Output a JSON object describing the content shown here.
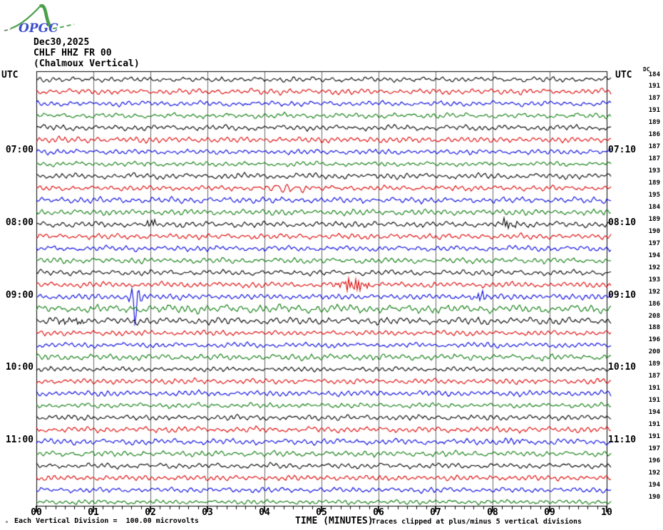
{
  "logo": {
    "text": "OPGC",
    "text_color": "#3d4ec9",
    "curve_color": "#4aa04a"
  },
  "header": {
    "date": "Dec30,2025",
    "station": "CHLF HHZ FR 00",
    "description": "(Chalmoux Vertical)"
  },
  "axis": {
    "utc_left": "UTC",
    "utc_right": "UTC",
    "dc_header": "DC",
    "x_ticks": [
      "00",
      "01",
      "02",
      "03",
      "04",
      "05",
      "06",
      "07",
      "08",
      "09",
      "10"
    ],
    "minor_ticks_per_major": 6,
    "x_label": "TIME (MINUTES)"
  },
  "hour_labels": [
    {
      "row": 7,
      "left": "07:00",
      "right": "07:10"
    },
    {
      "row": 13,
      "left": "08:00",
      "right": "08:10"
    },
    {
      "row": 19,
      "left": "09:00",
      "right": "09:10"
    },
    {
      "row": 25,
      "left": "10:00",
      "right": "10:10"
    },
    {
      "row": 31,
      "left": "11:00",
      "right": "11:10"
    }
  ],
  "footer": {
    "micro_glyph": "ₘ",
    "scale_note": "Each Vertical Division =  100.00 microvolts",
    "clip_note": "Traces clipped at plus/minus 5 vertical divisions"
  },
  "chart_data": {
    "type": "line",
    "title": "CHLF HHZ FR 00 (Chalmoux Vertical) Dec30,2025 helicorder",
    "xlabel": "TIME (MINUTES)",
    "x_range": [
      0,
      10
    ],
    "grid": true,
    "grid_color": "#666666",
    "row_duration_minutes": 10,
    "vertical_division_microvolts": 100.0,
    "clip_divisions": 5,
    "colors": {
      "black": "#000000",
      "red": "#dd0000",
      "blue": "#0000dd",
      "green": "#0a7a0a"
    },
    "rows": [
      {
        "start": "06:00",
        "end": "06:10",
        "color": "black",
        "dc": 184
      },
      {
        "start": "06:10",
        "end": "06:20",
        "color": "red",
        "dc": 191
      },
      {
        "start": "06:20",
        "end": "06:30",
        "color": "blue",
        "dc": 187
      },
      {
        "start": "06:30",
        "end": "06:40",
        "color": "green",
        "dc": 191
      },
      {
        "start": "06:40",
        "end": "06:50",
        "color": "black",
        "dc": 189
      },
      {
        "start": "06:50",
        "end": "07:00",
        "color": "red",
        "dc": 186
      },
      {
        "start": "07:00",
        "end": "07:10",
        "color": "blue",
        "dc": 187
      },
      {
        "start": "07:10",
        "end": "07:20",
        "color": "green",
        "dc": 187
      },
      {
        "start": "07:20",
        "end": "07:30",
        "color": "black",
        "dc": 193
      },
      {
        "start": "07:30",
        "end": "07:40",
        "color": "red",
        "dc": 189,
        "events": [
          {
            "t": 4.35,
            "amp": 4.5,
            "sigma": 0.28,
            "wl": 14
          }
        ]
      },
      {
        "start": "07:40",
        "end": "07:50",
        "color": "blue",
        "dc": 195,
        "amp": 1.15
      },
      {
        "start": "07:50",
        "end": "08:00",
        "color": "green",
        "dc": 184
      },
      {
        "start": "08:00",
        "end": "08:10",
        "color": "black",
        "dc": 189,
        "events": [
          {
            "t": 2.02,
            "amp": 5.5,
            "sigma": 0.06,
            "wl": 3.2
          },
          {
            "t": 8.28,
            "amp": 6.5,
            "sigma": 0.09,
            "wl": 3.6
          }
        ]
      },
      {
        "start": "08:10",
        "end": "08:20",
        "color": "red",
        "dc": 190
      },
      {
        "start": "08:20",
        "end": "08:30",
        "color": "blue",
        "dc": 197
      },
      {
        "start": "08:30",
        "end": "08:40",
        "color": "green",
        "dc": 194
      },
      {
        "start": "08:40",
        "end": "08:50",
        "color": "black",
        "dc": 192
      },
      {
        "start": "08:50",
        "end": "09:00",
        "color": "red",
        "dc": 193,
        "events": [
          {
            "t": 5.55,
            "amp": 9,
            "sigma": 0.16,
            "wl": 3.5
          }
        ]
      },
      {
        "start": "09:00",
        "end": "09:10",
        "color": "blue",
        "dc": 192,
        "events": [
          {
            "t": 1.73,
            "amp": 15,
            "sigma": 0.08,
            "wl": 2.6,
            "spike": 26
          },
          {
            "t": 7.78,
            "amp": 6.5,
            "sigma": 0.07,
            "wl": 3
          }
        ]
      },
      {
        "start": "09:10",
        "end": "09:20",
        "color": "green",
        "dc": 186,
        "amp": 1.65
      },
      {
        "start": "09:20",
        "end": "09:30",
        "color": "black",
        "dc": 208,
        "amp": 1.15,
        "events": [
          {
            "t": 0.6,
            "amp": 5.5,
            "sigma": 0.13,
            "wl": 3.8
          }
        ]
      },
      {
        "start": "09:30",
        "end": "09:40",
        "color": "red",
        "dc": 188
      },
      {
        "start": "09:40",
        "end": "09:50",
        "color": "blue",
        "dc": 196
      },
      {
        "start": "09:50",
        "end": "10:00",
        "color": "green",
        "dc": 200,
        "amp": 1.3
      },
      {
        "start": "10:00",
        "end": "10:10",
        "color": "black",
        "dc": 189
      },
      {
        "start": "10:10",
        "end": "10:20",
        "color": "red",
        "dc": 187
      },
      {
        "start": "10:20",
        "end": "10:30",
        "color": "blue",
        "dc": 191
      },
      {
        "start": "10:30",
        "end": "10:40",
        "color": "green",
        "dc": 191
      },
      {
        "start": "10:40",
        "end": "10:50",
        "color": "black",
        "dc": 194
      },
      {
        "start": "10:50",
        "end": "11:00",
        "color": "red",
        "dc": 191
      },
      {
        "start": "11:00",
        "end": "11:10",
        "color": "blue",
        "dc": 191,
        "events": [
          {
            "t": 8.4,
            "amp": 4,
            "sigma": 0.12,
            "wl": 8
          }
        ]
      },
      {
        "start": "11:10",
        "end": "11:20",
        "color": "green",
        "dc": 197
      },
      {
        "start": "11:20",
        "end": "11:30",
        "color": "black",
        "dc": 196
      },
      {
        "start": "11:30",
        "end": "11:40",
        "color": "red",
        "dc": 192
      },
      {
        "start": "11:40",
        "end": "11:50",
        "color": "blue",
        "dc": 194
      },
      {
        "start": "11:50",
        "end": "12:00",
        "color": "green",
        "dc": 190
      }
    ]
  }
}
